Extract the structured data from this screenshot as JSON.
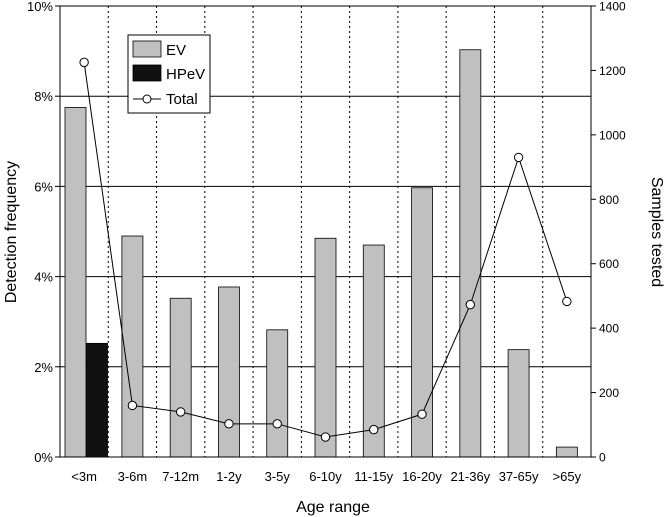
{
  "chart_data": {
    "type": "bar",
    "categories": [
      "<3m",
      "3-6m",
      "7-12m",
      "1-2y",
      "3-5y",
      "6-10y",
      "11-15y",
      "16-20y",
      "21-36y",
      "37-65y",
      ">65y"
    ],
    "series": [
      {
        "name": "EV",
        "axis": "left",
        "kind": "bar",
        "color": "#c0c0c0",
        "values": [
          7.75,
          4.9,
          3.52,
          3.77,
          2.82,
          4.85,
          4.7,
          5.97,
          9.03,
          2.38,
          0.22
        ]
      },
      {
        "name": "HPeV",
        "axis": "left",
        "kind": "bar",
        "color": "#111111",
        "values": [
          2.52,
          null,
          null,
          null,
          null,
          null,
          null,
          null,
          null,
          null,
          null
        ]
      },
      {
        "name": "Total",
        "axis": "right",
        "kind": "line",
        "color": "#000000",
        "values": [
          1225,
          160,
          140,
          103,
          103,
          62,
          85,
          133,
          473,
          930,
          483
        ]
      }
    ],
    "xlabel": "Age range",
    "ylabel": "Detection frequency",
    "y2label": "Samples tested",
    "ylim": [
      0,
      10
    ],
    "y2lim": [
      0,
      1400
    ],
    "yticks": [
      "0%",
      "2%",
      "4%",
      "6%",
      "8%",
      "10%"
    ],
    "y2ticks": [
      "0",
      "200",
      "400",
      "600",
      "800",
      "1000",
      "1200",
      "1400"
    ],
    "grid": "horizontal solid at y ticks; dotted vertical separators between categories",
    "legend_position": "top-left"
  }
}
